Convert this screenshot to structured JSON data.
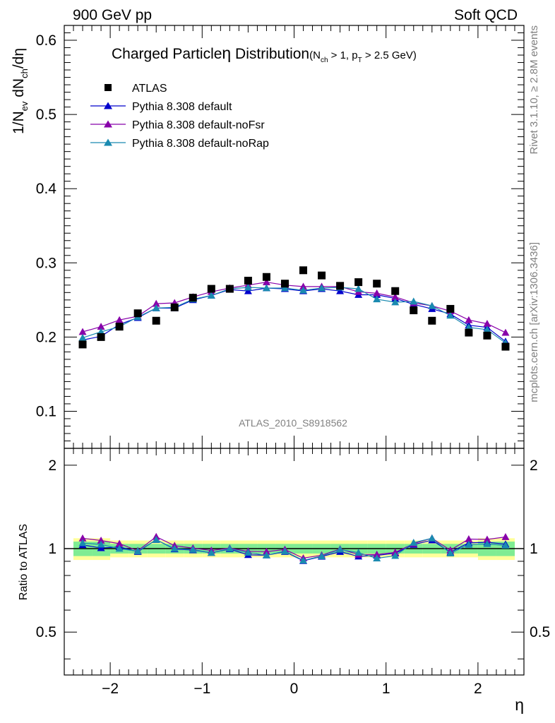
{
  "header": {
    "left": "900 GeV pp",
    "right": "Soft QCD"
  },
  "side_labels": {
    "rivet": "Rivet 3.1.10, ≥ 2.8M events",
    "mcplots": "mcplots.cern.ch [arXiv:1306.3436]"
  },
  "chart_data": {
    "type": "scatter",
    "title": {
      "main": "Charged Particle",
      "symbol": "η",
      "rest": " Distribution",
      "cut_open": "(N",
      "cut_ch": "ch",
      "cut_mid": " > 1, p",
      "cut_t": "T",
      "cut_close": " > 2.5 GeV)"
    },
    "analysis_tag": "ATLAS_2010_S8918562",
    "xlabel": "η",
    "ylabel": {
      "p1": "1/N",
      "sub1": "ev",
      "p2": " dN",
      "sub2": "ch",
      "p3": "/dη"
    },
    "ratio_ylabel": "Ratio to ATLAS",
    "xlim": [
      -2.5,
      2.5
    ],
    "ylim": [
      0.05,
      0.62
    ],
    "ratio_ylim": [
      0.35,
      2.3
    ],
    "log_ratio_axis": true,
    "x_ticks": [
      -2,
      -1,
      0,
      1,
      2
    ],
    "x_tick_labels": [
      "−2",
      "−1",
      "0",
      "1",
      "2"
    ],
    "y_ticks": [
      0.1,
      0.2,
      0.3,
      0.4,
      0.5,
      0.6
    ],
    "y_tick_labels": [
      "0.1",
      "0.2",
      "0.3",
      "0.4",
      "0.5",
      "0.6"
    ],
    "ratio_ticks": [
      0.5,
      1,
      2
    ],
    "ratio_tick_labels": [
      "0.5",
      "1",
      "2"
    ],
    "x": [
      -2.3,
      -2.1,
      -1.9,
      -1.7,
      -1.5,
      -1.3,
      -1.1,
      -0.9,
      -0.7,
      -0.5,
      -0.3,
      -0.1,
      0.1,
      0.3,
      0.5,
      0.7,
      0.9,
      1.1,
      1.3,
      1.5,
      1.7,
      1.9,
      2.1,
      2.3
    ],
    "data": {
      "name": "ATLAS",
      "color": "#000000",
      "values": [
        0.19,
        0.2,
        0.214,
        0.232,
        0.222,
        0.24,
        0.253,
        0.265,
        0.265,
        0.276,
        0.281,
        0.272,
        0.29,
        0.283,
        0.269,
        0.274,
        0.272,
        0.262,
        0.236,
        0.222,
        0.238,
        0.206,
        0.202,
        0.187
      ]
    },
    "series": [
      {
        "name": "Pythia 8.308 default",
        "color": "#0000cc",
        "values": [
          0.196,
          0.201,
          0.217,
          0.226,
          0.239,
          0.239,
          0.25,
          0.256,
          0.264,
          0.262,
          0.266,
          0.265,
          0.262,
          0.265,
          0.262,
          0.257,
          0.257,
          0.252,
          0.244,
          0.238,
          0.231,
          0.216,
          0.213,
          0.194
        ]
      },
      {
        "name": "Pythia 8.308 default-noFsr",
        "color": "#8800aa",
        "values": [
          0.207,
          0.214,
          0.223,
          0.228,
          0.245,
          0.246,
          0.254,
          0.261,
          0.266,
          0.27,
          0.274,
          0.27,
          0.268,
          0.268,
          0.268,
          0.261,
          0.259,
          0.254,
          0.246,
          0.242,
          0.235,
          0.223,
          0.218,
          0.206
        ]
      },
      {
        "name": "Pythia 8.308 default-noRap",
        "color": "#1a8ab0",
        "values": [
          0.199,
          0.207,
          0.214,
          0.227,
          0.239,
          0.24,
          0.251,
          0.256,
          0.265,
          0.267,
          0.266,
          0.266,
          0.263,
          0.266,
          0.267,
          0.265,
          0.251,
          0.247,
          0.248,
          0.242,
          0.229,
          0.213,
          0.21,
          0.192
        ]
      }
    ],
    "uncertainty_band": {
      "inner_color": "#7fec93",
      "outer_color": "#ffff99",
      "inner_rel": [
        0.06,
        0.06,
        0.04,
        0.04,
        0.04,
        0.04,
        0.04,
        0.04,
        0.04,
        0.04,
        0.04,
        0.04,
        0.04,
        0.04,
        0.04,
        0.04,
        0.04,
        0.04,
        0.04,
        0.04,
        0.04,
        0.04,
        0.06,
        0.06
      ],
      "outer_rel": [
        0.09,
        0.09,
        0.07,
        0.07,
        0.07,
        0.07,
        0.07,
        0.07,
        0.07,
        0.07,
        0.07,
        0.07,
        0.07,
        0.07,
        0.07,
        0.07,
        0.07,
        0.07,
        0.07,
        0.07,
        0.07,
        0.07,
        0.09,
        0.09
      ]
    },
    "legend_position": "top-left",
    "grid": false
  }
}
